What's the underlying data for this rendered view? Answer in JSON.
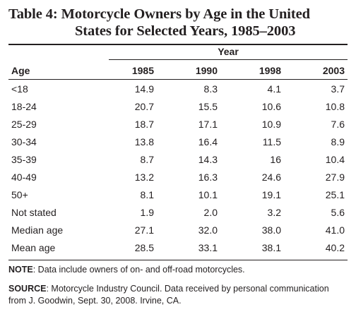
{
  "title": {
    "line1": "Table 4: Motorcycle Owners by Age in the United",
    "line2": "States for Selected Years, 1985–2003"
  },
  "table": {
    "group_header": "Year",
    "row_header": "Age",
    "columns": [
      "1985",
      "1990",
      "1998",
      "2003"
    ],
    "rows": [
      {
        "label": "<18",
        "values": [
          "14.9",
          "8.3",
          "4.1",
          "3.7"
        ]
      },
      {
        "label": "18-24",
        "values": [
          "20.7",
          "15.5",
          "10.6",
          "10.8"
        ]
      },
      {
        "label": "25-29",
        "values": [
          "18.7",
          "17.1",
          "10.9",
          "7.6"
        ]
      },
      {
        "label": "30-34",
        "values": [
          "13.8",
          "16.4",
          "11.5",
          "8.9"
        ]
      },
      {
        "label": "35-39",
        "values": [
          "8.7",
          "14.3",
          "16",
          "10.4"
        ]
      },
      {
        "label": "40-49",
        "values": [
          "13.2",
          "16.3",
          "24.6",
          "27.9"
        ]
      },
      {
        "label": "50+",
        "values": [
          "8.1",
          "10.1",
          "19.1",
          "25.1"
        ]
      },
      {
        "label": "Not stated",
        "values": [
          "1.9",
          "2.0",
          "3.2",
          "5.6"
        ]
      },
      {
        "label": "Median age",
        "values": [
          "27.1",
          "32.0",
          "38.0",
          "41.0"
        ]
      },
      {
        "label": "Mean age",
        "values": [
          "28.5",
          "33.1",
          "38.1",
          "40.2"
        ]
      }
    ]
  },
  "notes": {
    "note_label": "NOTE",
    "note_text": ": Data include owners of on- and off-road motorcycles.",
    "source_label": "SOURCE",
    "source_text": ": Motorcycle Industry Council. Data received by personal communication from J. Goodwin, Sept. 30, 2008. Irvine, CA."
  }
}
